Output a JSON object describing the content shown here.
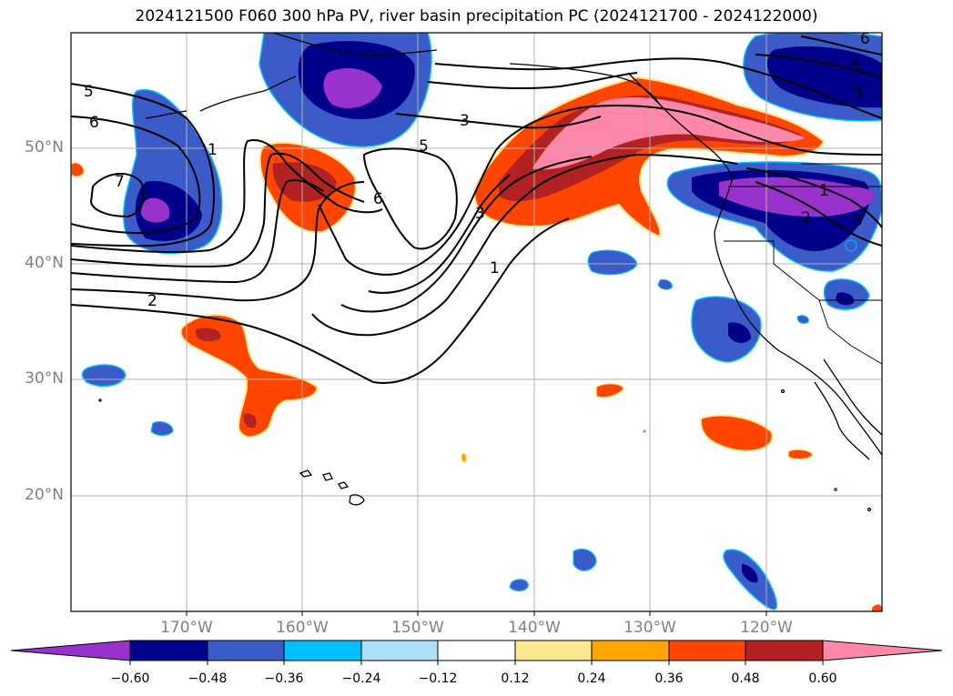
{
  "title": "2024121500 F060 300 hPa PV, river basin precipitation PC (2024121700 - 2024122000)",
  "latitude_labels": [
    "50°N",
    "40°N",
    "30°N",
    "20°N"
  ],
  "longitude_labels": [
    "170°W",
    "160°W",
    "150°W",
    "140°W",
    "130°W",
    "120°W"
  ],
  "contour_labels": [
    "5",
    "6",
    "7",
    "1",
    "2",
    "3",
    "5",
    "6",
    "1",
    "3",
    "5",
    "3",
    "2",
    "3",
    "1",
    "6"
  ],
  "colorbar": {
    "ticks": [
      "−0.60",
      "−0.48",
      "−0.36",
      "−0.24",
      "−0.12",
      "0.12",
      "0.24",
      "0.36",
      "0.48",
      "0.60"
    ],
    "colors": [
      "#9932CC",
      "#00008B",
      "#3A5BC8",
      "#00BFFF",
      "#ADE0F8",
      "#FFFFFF",
      "#FCE98F",
      "#FFA500",
      "#FF4500",
      "#B22222",
      "#FF88AA"
    ]
  },
  "colors": {
    "neg_strong": "#9932CC",
    "neg_navy": "#00008B",
    "neg_blue": "#3A5BC8",
    "neg_cyan": "#00BFFF",
    "pos_yellow": "#FCE98F",
    "pos_orange": "#FF4500",
    "pos_dark_red": "#B22222",
    "pos_pink": "#FF88AA"
  }
}
